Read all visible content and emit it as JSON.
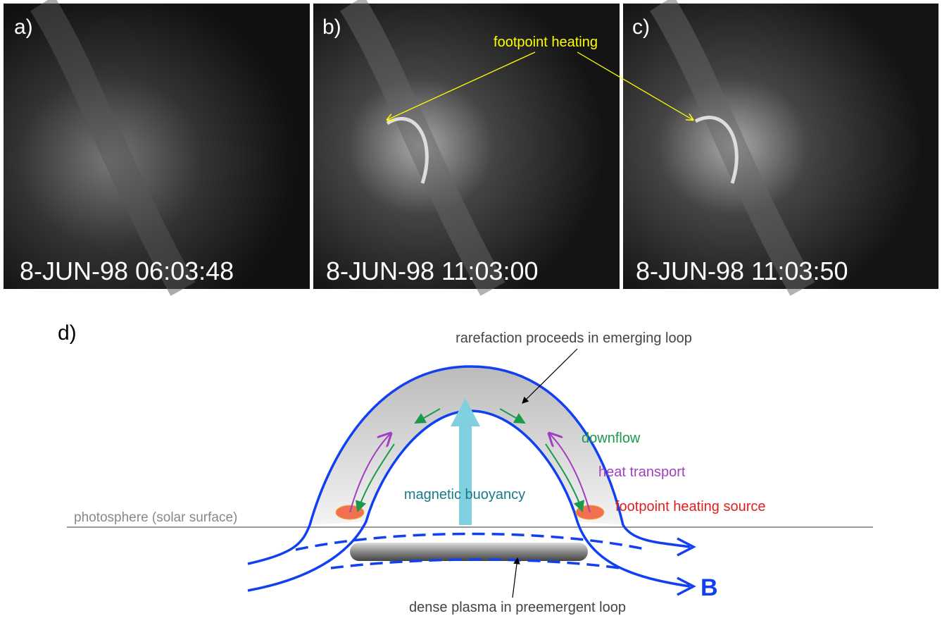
{
  "panels": [
    {
      "label": "a)",
      "timestamp": "8-JUN-98 06:03:48"
    },
    {
      "label": "b)",
      "timestamp": "8-JUN-98 11:03:00"
    },
    {
      "label": "c)",
      "timestamp": "8-JUN-98 11:03:50"
    }
  ],
  "annotation": "footpoint heating",
  "diagram": {
    "label": "d)",
    "rarefaction": "rarefaction proceeds in emerging loop",
    "downflow": "downflow",
    "heat_transport": "heat transport",
    "heating_source": "footpoint heating source",
    "buoyancy": "magnetic buoyancy",
    "photosphere": "photosphere (solar surface)",
    "dense_plasma": "dense plasma in preemergent loop",
    "field": "B"
  }
}
